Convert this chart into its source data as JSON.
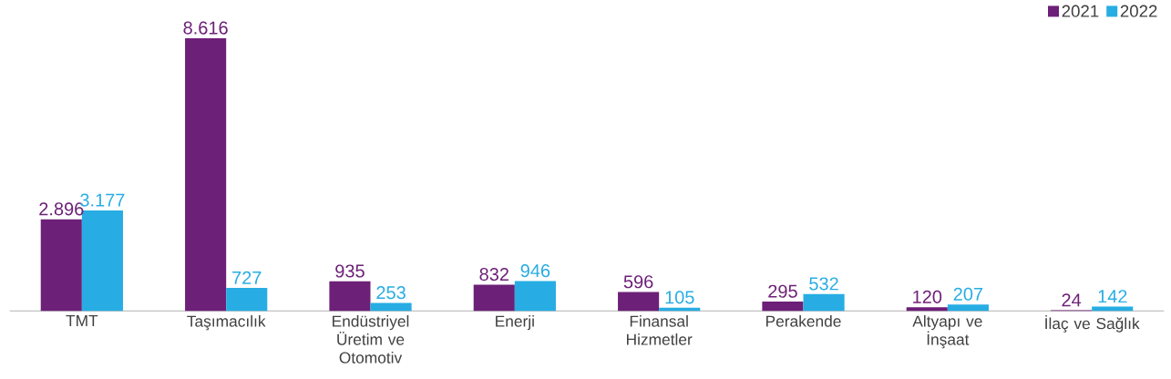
{
  "chart_data": {
    "type": "bar",
    "categories": [
      "TMT",
      "Taşımacılık",
      "Endüstriyel Üretim ve Otomotiv",
      "Enerji",
      "Finansal Hizmetler",
      "Perakende",
      "Altyapı ve İnşaat",
      "İlaç ve Sağlık"
    ],
    "series": [
      {
        "name": "2021",
        "color": "#6d2077",
        "values": [
          2896,
          8616,
          935,
          832,
          596,
          295,
          120,
          24
        ],
        "value_labels": [
          "2.896",
          "8.616",
          "935",
          "832",
          "596",
          "295",
          "120",
          "24"
        ]
      },
      {
        "name": "2022",
        "color": "#27ade3",
        "values": [
          3177,
          727,
          253,
          946,
          105,
          532,
          207,
          142
        ],
        "value_labels": [
          "3.177",
          "727",
          "253",
          "946",
          "105",
          "532",
          "207",
          "142"
        ]
      }
    ],
    "legend": "top right"
  }
}
